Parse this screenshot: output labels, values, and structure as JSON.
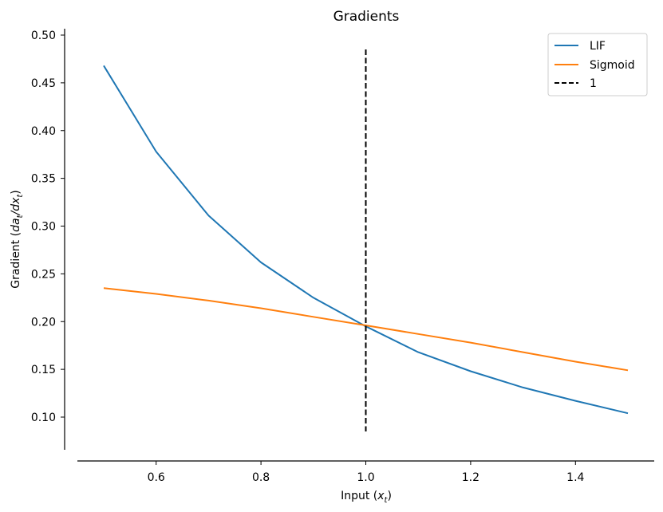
{
  "chart_data": {
    "type": "line",
    "title": "Gradients",
    "xlabel": "Input (x_t)",
    "xlabel_main": "Input (",
    "xlabel_var": "x",
    "xlabel_sub": "t",
    "xlabel_end": ")",
    "ylabel": "Gradient (da_t/dx_t)",
    "ylabel_main": "Gradient (",
    "ylabel_v1": "da",
    "ylabel_s1": "t",
    "ylabel_v2": "/dx",
    "ylabel_s2": "t",
    "ylabel_end": ")",
    "xlim": [
      0.45,
      1.55
    ],
    "ylim": [
      0.065,
      0.505
    ],
    "xticks": [
      0.6,
      0.8,
      1.0,
      1.2,
      1.4
    ],
    "xtick_labels": [
      "0.6",
      "0.8",
      "1.0",
      "1.2",
      "1.4"
    ],
    "yticks": [
      0.1,
      0.15,
      0.2,
      0.25,
      0.3,
      0.35,
      0.4,
      0.45,
      0.5
    ],
    "ytick_labels": [
      "0.10",
      "0.15",
      "0.20",
      "0.25",
      "0.30",
      "0.35",
      "0.40",
      "0.45",
      "0.50"
    ],
    "grid": false,
    "legend_position": "top-right",
    "series": [
      {
        "name": "LIF",
        "color": "#1f77b4",
        "x": [
          0.5,
          0.6,
          0.7,
          0.8,
          0.9,
          1.0,
          1.1,
          1.2,
          1.3,
          1.4,
          1.5
        ],
        "values": [
          0.468,
          0.378,
          0.311,
          0.262,
          0.225,
          0.195,
          0.168,
          0.148,
          0.131,
          0.117,
          0.104
        ]
      },
      {
        "name": "Sigmoid",
        "color": "#ff7f0e",
        "x": [
          0.5,
          0.6,
          0.7,
          0.8,
          0.9,
          1.0,
          1.1,
          1.2,
          1.3,
          1.4,
          1.5
        ],
        "values": [
          0.235,
          0.229,
          0.222,
          0.214,
          0.205,
          0.196,
          0.187,
          0.178,
          0.168,
          0.158,
          0.149
        ]
      }
    ],
    "vline": {
      "name": "1",
      "color": "#000000",
      "style": "dashed",
      "x": 1.0,
      "y_range": [
        0.085,
        0.485
      ]
    }
  }
}
